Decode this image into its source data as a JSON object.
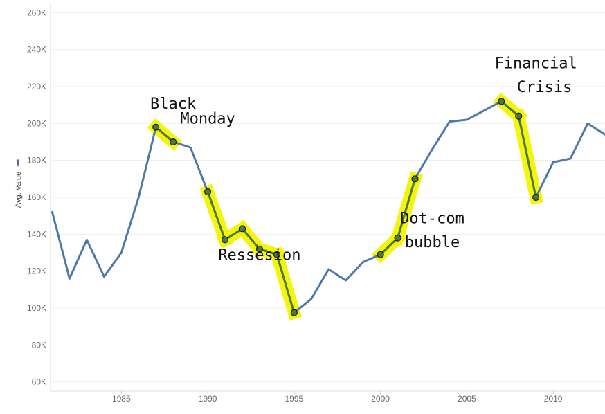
{
  "chart_data": {
    "type": "line",
    "title": "",
    "xlabel": "",
    "ylabel": "Avg. Value",
    "xlim": [
      1980.9,
      2013
    ],
    "ylim": [
      55000,
      265000
    ],
    "grid": true,
    "x_ticks": [
      1985,
      1990,
      1995,
      2000,
      2005,
      2010
    ],
    "y_ticks": [
      60000,
      80000,
      100000,
      120000,
      140000,
      160000,
      180000,
      200000,
      220000,
      240000,
      260000
    ],
    "tick_labels": {
      "x": [
        "1985",
        "1990",
        "1995",
        "2000",
        "2005",
        "2010"
      ],
      "y": [
        "60K",
        "80K",
        "100K",
        "120K",
        "140K",
        "160K",
        "180K",
        "200K",
        "220K",
        "240K",
        "260K"
      ]
    },
    "series": [
      {
        "color": "#4e79a7",
        "x": [
          1981,
          1982,
          1983,
          1984,
          1985,
          1986,
          1987,
          1988,
          1989,
          1990,
          1991,
          1992,
          1993,
          1994,
          1995,
          1996,
          1997,
          1998,
          1999,
          2000,
          2001,
          2002,
          2003,
          2004,
          2005,
          2006,
          2007,
          2008,
          2009,
          2010,
          2011,
          2012,
          2013
        ],
        "y": [
          152000,
          116000,
          137000,
          117000,
          130000,
          160000,
          198000,
          190000,
          187000,
          163000,
          137000,
          143000,
          132000,
          129000,
          97500,
          105000,
          121000,
          115000,
          125000,
          129000,
          138000,
          170000,
          186000,
          201000,
          202000,
          207000,
          212000,
          204000,
          160000,
          179000,
          181000,
          200000,
          194000
        ],
        "highlighted_x": [
          1987,
          1988,
          1990,
          1991,
          1992,
          1993,
          1994,
          1995,
          2000,
          2001,
          2002,
          2007,
          2008,
          2009
        ]
      }
    ],
    "annotations": [
      {
        "text": "Black",
        "x": 1988,
        "y": 208000
      },
      {
        "text": "Monday",
        "x": 1990,
        "y": 200000
      },
      {
        "text": "Ressesion",
        "x": 1993,
        "y": 126000
      },
      {
        "text": "Dot-com",
        "x": 2003,
        "y": 146000
      },
      {
        "text": "bubble",
        "x": 2003,
        "y": 133000
      },
      {
        "text": "Financial",
        "x": 2009,
        "y": 230000
      },
      {
        "text": "Crisis",
        "x": 2009.5,
        "y": 217000
      }
    ],
    "colors": {
      "line": "#4e79a7",
      "highlight": "#f5f500",
      "marker": "#4a7a3e"
    }
  }
}
